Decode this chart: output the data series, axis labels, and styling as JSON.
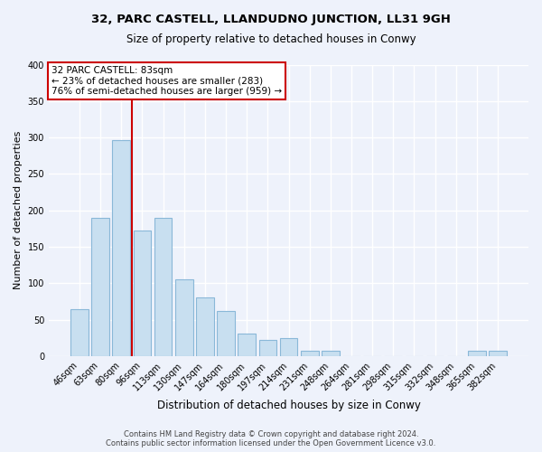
{
  "title": "32, PARC CASTELL, LLANDUDNO JUNCTION, LL31 9GH",
  "subtitle": "Size of property relative to detached houses in Conwy",
  "xlabel": "Distribution of detached houses by size in Conwy",
  "ylabel": "Number of detached properties",
  "bar_labels": [
    "46sqm",
    "63sqm",
    "80sqm",
    "96sqm",
    "113sqm",
    "130sqm",
    "147sqm",
    "164sqm",
    "180sqm",
    "197sqm",
    "214sqm",
    "231sqm",
    "248sqm",
    "264sqm",
    "281sqm",
    "298sqm",
    "315sqm",
    "332sqm",
    "348sqm",
    "365sqm",
    "382sqm"
  ],
  "bar_values": [
    65,
    190,
    297,
    172,
    190,
    106,
    80,
    62,
    31,
    22,
    25,
    8,
    7,
    0,
    0,
    0,
    0,
    0,
    0,
    8,
    8
  ],
  "bar_color": "#c8dff0",
  "bar_edge_color": "#8ab8d8",
  "vline_color": "#cc0000",
  "annotation_title": "32 PARC CASTELL: 83sqm",
  "annotation_line1": "← 23% of detached houses are smaller (283)",
  "annotation_line2": "76% of semi-detached houses are larger (959) →",
  "ylim": [
    0,
    400
  ],
  "yticks": [
    0,
    50,
    100,
    150,
    200,
    250,
    300,
    350,
    400
  ],
  "footer_line1": "Contains HM Land Registry data © Crown copyright and database right 2024.",
  "footer_line2": "Contains public sector information licensed under the Open Government Licence v3.0.",
  "background_color": "#eef2fb",
  "plot_bg_color": "#eef2fb",
  "figsize": [
    6.0,
    5.0
  ],
  "dpi": 100
}
